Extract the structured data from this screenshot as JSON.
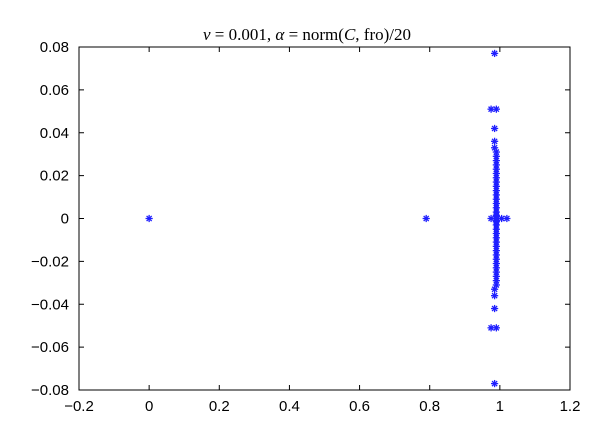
{
  "chart_data": {
    "type": "scatter",
    "title_parts": [
      {
        "text": "ν",
        "italic": true
      },
      {
        "text": " = 0.001, ",
        "italic": false
      },
      {
        "text": "α",
        "italic": true
      },
      {
        "text": " = norm(",
        "italic": false
      },
      {
        "text": "C",
        "italic": true
      },
      {
        "text": ", fro)/20",
        "italic": false
      }
    ],
    "xlim": [
      -0.2,
      1.2
    ],
    "ylim": [
      -0.08,
      0.08
    ],
    "x_ticks": [
      -0.2,
      0,
      0.2,
      0.4,
      0.6,
      0.8,
      1,
      1.2
    ],
    "x_tick_labels": [
      "−0.2",
      "0",
      "0.2",
      "0.4",
      "0.6",
      "0.8",
      "1",
      "1.2"
    ],
    "y_ticks": [
      0.08,
      0.06,
      0.04,
      0.02,
      0,
      -0.02,
      -0.04,
      -0.06,
      -0.08
    ],
    "y_tick_labels": [
      "0.08",
      "0.06",
      "0.04",
      "0.02",
      "0",
      "−0.02",
      "−0.04",
      "−0.06",
      "−0.08"
    ],
    "grid": false,
    "marker": "asterisk",
    "marker_color": "#1f1fff",
    "points": [
      [
        0,
        0
      ],
      [
        0.79,
        0
      ],
      [
        0.985,
        0.077
      ],
      [
        0.985,
        -0.077
      ],
      [
        0.975,
        0.051
      ],
      [
        0.99,
        0.051
      ],
      [
        0.975,
        -0.051
      ],
      [
        0.99,
        -0.051
      ],
      [
        0.985,
        0.042
      ],
      [
        0.985,
        -0.042
      ],
      [
        0.985,
        0.036
      ],
      [
        0.985,
        -0.036
      ],
      [
        0.985,
        0.033
      ],
      [
        0.99,
        0.031
      ],
      [
        0.985,
        -0.033
      ],
      [
        0.99,
        -0.031
      ],
      [
        0.99,
        0.029
      ],
      [
        0.99,
        -0.029
      ],
      [
        0.99,
        0.027
      ],
      [
        0.99,
        -0.027
      ],
      [
        0.99,
        0.025
      ],
      [
        0.99,
        -0.025
      ],
      [
        0.99,
        0.023
      ],
      [
        0.99,
        -0.023
      ],
      [
        0.99,
        0.021
      ],
      [
        0.99,
        -0.021
      ],
      [
        0.99,
        0.019
      ],
      [
        0.99,
        -0.019
      ],
      [
        0.99,
        0.017
      ],
      [
        0.99,
        -0.017
      ],
      [
        0.99,
        0.015
      ],
      [
        0.99,
        -0.015
      ],
      [
        0.99,
        0.013
      ],
      [
        0.99,
        -0.013
      ],
      [
        0.99,
        0.011
      ],
      [
        0.99,
        -0.011
      ],
      [
        0.99,
        0.009
      ],
      [
        0.99,
        -0.009
      ],
      [
        0.99,
        0.007
      ],
      [
        0.99,
        -0.007
      ],
      [
        0.99,
        0.005
      ],
      [
        0.99,
        -0.005
      ],
      [
        0.99,
        0.003
      ],
      [
        0.99,
        -0.003
      ],
      [
        0.99,
        0.0015
      ],
      [
        0.99,
        -0.0015
      ],
      [
        0.975,
        0
      ],
      [
        0.99,
        0
      ],
      [
        1.005,
        0
      ],
      [
        1.02,
        0
      ]
    ]
  }
}
